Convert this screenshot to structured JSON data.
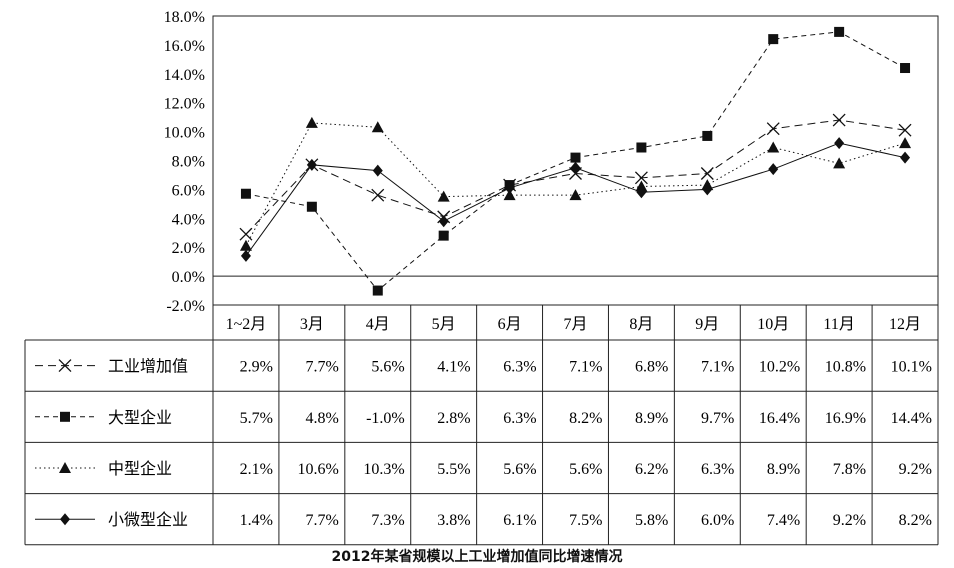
{
  "chart_data": {
    "type": "line",
    "title": "2012年某省规模以上工业增加值同比增速情况",
    "categories": [
      "1~2月",
      "3月",
      "4月",
      "5月",
      "6月",
      "7月",
      "8月",
      "9月",
      "10月",
      "11月",
      "12月"
    ],
    "y_ticks": [
      "18.0%",
      "16.0%",
      "14.0%",
      "12.0%",
      "10.0%",
      "8.0%",
      "6.0%",
      "4.0%",
      "2.0%",
      "0.0%",
      "-2.0%"
    ],
    "ylim": [
      -2,
      18
    ],
    "grid": false,
    "legend": "left table column",
    "series": [
      {
        "name": "工业增加值",
        "marker": "x",
        "dash": "dashed",
        "values": [
          2.9,
          7.7,
          5.6,
          4.1,
          6.3,
          7.1,
          6.8,
          7.1,
          10.2,
          10.8,
          10.1
        ],
        "labels": [
          "2.9%",
          "7.7%",
          "5.6%",
          "4.1%",
          "6.3%",
          "7.1%",
          "6.8%",
          "7.1%",
          "10.2%",
          "10.8%",
          "10.1%"
        ]
      },
      {
        "name": "大型企业",
        "marker": "square",
        "dash": "dashed-short",
        "values": [
          5.7,
          4.8,
          -1.0,
          2.8,
          6.3,
          8.2,
          8.9,
          9.7,
          16.4,
          16.9,
          14.4
        ],
        "labels": [
          "5.7%",
          "4.8%",
          "-1.0%",
          "2.8%",
          "6.3%",
          "8.2%",
          "8.9%",
          "9.7%",
          "16.4%",
          "16.9%",
          "14.4%"
        ]
      },
      {
        "name": "中型企业",
        "marker": "triangle",
        "dash": "dotted",
        "values": [
          2.1,
          10.6,
          10.3,
          5.5,
          5.6,
          5.6,
          6.2,
          6.3,
          8.9,
          7.8,
          9.2
        ],
        "labels": [
          "2.1%",
          "10.6%",
          "10.3%",
          "5.5%",
          "5.6%",
          "5.6%",
          "6.2%",
          "6.3%",
          "8.9%",
          "7.8%",
          "9.2%"
        ]
      },
      {
        "name": "小微型企业",
        "marker": "diamond",
        "dash": "solid",
        "values": [
          1.4,
          7.7,
          7.3,
          3.8,
          6.1,
          7.5,
          5.8,
          6.0,
          7.4,
          9.2,
          8.2
        ],
        "labels": [
          "1.4%",
          "7.7%",
          "7.3%",
          "3.8%",
          "6.1%",
          "7.5%",
          "5.8%",
          "6.0%",
          "7.4%",
          "9.2%",
          "8.2%"
        ]
      }
    ]
  }
}
